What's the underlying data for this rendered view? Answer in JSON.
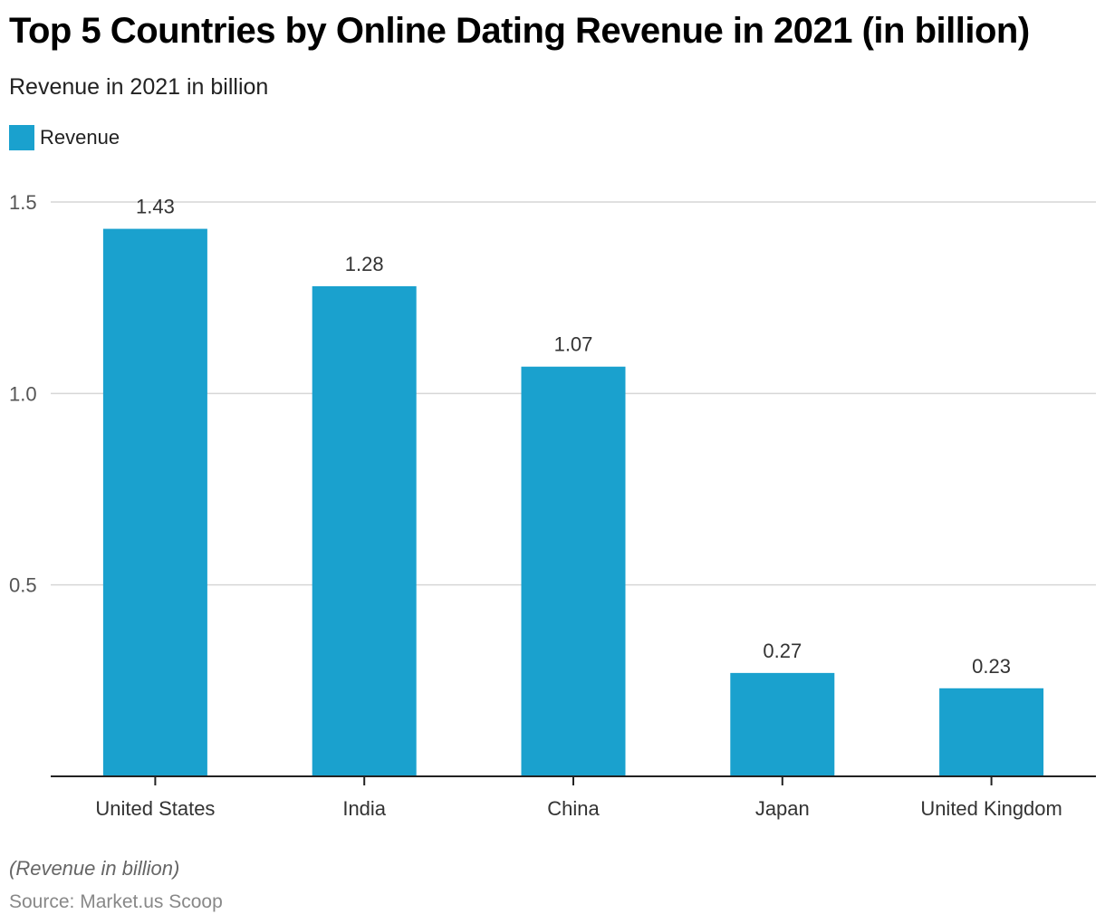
{
  "header": {
    "title": "Top 5 Countries by Online Dating Revenue in 2021 (in billion)",
    "subtitle": "Revenue in 2021 in billion"
  },
  "legend": {
    "items": [
      {
        "label": "Revenue",
        "color": "#1aa1ce"
      }
    ]
  },
  "footer": {
    "note": "(Revenue in billion)",
    "source": "Source: Market.us Scoop"
  },
  "chart_data": {
    "type": "bar",
    "title": "Top 5 Countries by Online Dating Revenue in 2021 (in billion)",
    "subtitle": "Revenue in 2021 in billion",
    "xlabel": "",
    "ylabel": "",
    "categories": [
      "United States",
      "India",
      "China",
      "Japan",
      "United Kingdom"
    ],
    "series": [
      {
        "name": "Revenue",
        "color": "#1aa1ce",
        "values": [
          1.43,
          1.28,
          1.07,
          0.27,
          0.23
        ]
      }
    ],
    "data_labels": [
      "1.43",
      "1.28",
      "1.07",
      "0.27",
      "0.23"
    ],
    "ylim": [
      0,
      1.5
    ],
    "yticks": [
      0.5,
      1.0,
      1.5
    ],
    "ytick_labels": [
      "0.5",
      "1.0",
      "1.5"
    ],
    "grid": true,
    "legend_position": "top-left"
  }
}
